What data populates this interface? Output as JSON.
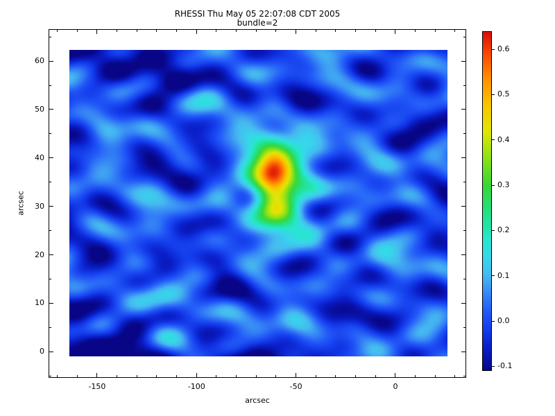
{
  "chart_data": {
    "type": "heatmap",
    "title": "RHESSI Thu May 05 22:07:08 CDT 2005",
    "subtitle": "bundle=2",
    "xlabel": "arcsec",
    "ylabel": "arcsec",
    "axes_x_range": [
      -174.4,
      35.6
    ],
    "axes_y_range": [
      -5.4,
      66.6
    ],
    "image_x_extent": [
      -164.0,
      26.2
    ],
    "image_y_extent": [
      -1.0,
      62.3
    ],
    "x_ticks": {
      "values": [
        -150,
        -100,
        -50,
        0
      ],
      "labels": [
        "-150",
        "-100",
        "-50",
        "0"
      ]
    },
    "y_ticks": {
      "values": [
        0,
        10,
        20,
        30,
        40,
        50,
        60
      ],
      "labels": [
        "0",
        "10",
        "20",
        "30",
        "40",
        "50",
        "60"
      ]
    },
    "x_minor_step": 10,
    "y_minor_step": 5,
    "value_range": [
      -0.11,
      0.64
    ],
    "colorbar_ticks": {
      "values": [
        -0.1,
        0.0,
        0.1,
        0.2,
        0.3,
        0.4,
        0.5,
        0.6
      ],
      "labels": [
        "-0.1",
        "0.0",
        "0.1",
        "0.2",
        "0.3",
        "0.4",
        "0.5",
        "0.6"
      ]
    },
    "peak": {
      "x": -60,
      "y": 35,
      "value": 0.62
    },
    "colormap": [
      [
        -0.11,
        [
          8,
          6,
          135
        ]
      ],
      [
        -0.06,
        [
          10,
          30,
          200
        ]
      ],
      [
        -0.02,
        [
          20,
          60,
          235
        ]
      ],
      [
        0.02,
        [
          35,
          90,
          248
        ]
      ],
      [
        0.06,
        [
          55,
          135,
          245
        ]
      ],
      [
        0.1,
        [
          70,
          185,
          240
        ]
      ],
      [
        0.14,
        [
          55,
          215,
          235
        ]
      ],
      [
        0.18,
        [
          40,
          230,
          205
        ]
      ],
      [
        0.24,
        [
          35,
          225,
          130
        ]
      ],
      [
        0.3,
        [
          55,
          215,
          55
        ]
      ],
      [
        0.36,
        [
          140,
          225,
          25
        ]
      ],
      [
        0.42,
        [
          225,
          230,
          5
        ]
      ],
      [
        0.48,
        [
          250,
          195,
          0
        ]
      ],
      [
        0.54,
        [
          255,
          140,
          0
        ]
      ],
      [
        0.59,
        [
          250,
          75,
          5
        ]
      ],
      [
        0.64,
        [
          215,
          15,
          10
        ]
      ]
    ],
    "gaussians": [
      {
        "x": -61,
        "y": 35.5,
        "sx": 7.5,
        "sy": 4.8,
        "amp": 0.47
      },
      {
        "x": -57,
        "y": 34.5,
        "sx": 13,
        "sy": 8.5,
        "amp": 0.14
      },
      {
        "x": -43,
        "y": 33,
        "sx": 7,
        "sy": 5,
        "amp": 0.08
      },
      {
        "x": -63,
        "y": 42.5,
        "sx": 8,
        "sy": 4,
        "amp": 0.05
      },
      {
        "x": -140,
        "y": 59,
        "sx": 22,
        "sy": 5,
        "amp": -0.08
      },
      {
        "x": -157,
        "y": 2,
        "sx": 11,
        "sy": 4,
        "amp": -0.08
      },
      {
        "x": -100,
        "y": -2,
        "sx": 55,
        "sy": 2.5,
        "amp": -0.08
      },
      {
        "x": -148,
        "y": 46,
        "sx": 7,
        "sy": 3,
        "amp": 0.07
      },
      {
        "x": -102,
        "y": 2,
        "sx": 10,
        "sy": 2.5,
        "amp": 0.07
      }
    ],
    "background_waves": [
      [
        0.01,
        0.095,
        0.5,
        0.03
      ],
      [
        0.022,
        0.075,
        2.1,
        0.028
      ],
      [
        -0.018,
        0.11,
        4.0,
        0.024
      ],
      [
        0.03,
        0.05,
        1.2,
        0.022
      ],
      [
        -0.012,
        0.06,
        5.3,
        0.026
      ],
      [
        0.025,
        -0.09,
        0.8,
        0.022
      ],
      [
        0.008,
        0.14,
        3.3,
        0.018
      ],
      [
        -0.03,
        0.03,
        2.7,
        0.02
      ],
      [
        0.016,
        0.012,
        4.6,
        0.024
      ],
      [
        0.04,
        0.1,
        1.9,
        0.016
      ],
      [
        0.005,
        0.052,
        0.2,
        0.026
      ],
      [
        -0.022,
        0.13,
        5.9,
        0.015
      ]
    ]
  }
}
